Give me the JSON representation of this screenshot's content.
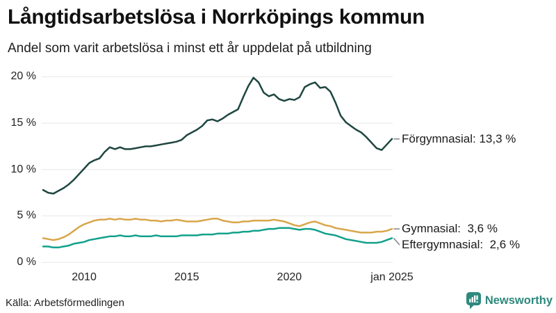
{
  "chart_data": {
    "type": "line",
    "title": "Långtidsarbetslösa i Norrköpings kommun",
    "subtitle": "Andel som varit arbetslösa i minst ett år uppdelat på utbildning",
    "source": "Källa: Arbetsförmedlingen",
    "unit": "%",
    "xlabel": "",
    "ylabel": "",
    "xlim": [
      2008,
      2025
    ],
    "ylim": [
      0,
      20
    ],
    "grid": "horizontal",
    "grid_color": "#e7e7e7",
    "legend_position": "right-end-annotations",
    "xticks": [
      {
        "value": 2010,
        "label": "2010"
      },
      {
        "value": 2015,
        "label": "2015"
      },
      {
        "value": 2020,
        "label": "2020"
      },
      {
        "value": 2025,
        "label": "jan 2025"
      }
    ],
    "yticks": [
      {
        "value": 20,
        "label": "20 %"
      },
      {
        "value": 15,
        "label": "15 %"
      },
      {
        "value": 10,
        "label": "10 %"
      },
      {
        "value": 5,
        "label": "5 %"
      },
      {
        "value": 0,
        "label": "0 %"
      }
    ],
    "x": [
      2008.0,
      2008.25,
      2008.5,
      2008.75,
      2009.0,
      2009.25,
      2009.5,
      2009.75,
      2010.0,
      2010.25,
      2010.5,
      2010.75,
      2011.0,
      2011.25,
      2011.5,
      2011.75,
      2012.0,
      2012.25,
      2012.5,
      2012.75,
      2013.0,
      2013.25,
      2013.5,
      2013.75,
      2014.0,
      2014.25,
      2014.5,
      2014.75,
      2015.0,
      2015.25,
      2015.5,
      2015.75,
      2016.0,
      2016.25,
      2016.5,
      2016.75,
      2017.0,
      2017.25,
      2017.5,
      2017.75,
      2018.0,
      2018.25,
      2018.5,
      2018.75,
      2019.0,
      2019.25,
      2019.5,
      2019.75,
      2020.0,
      2020.25,
      2020.5,
      2020.75,
      2021.0,
      2021.25,
      2021.5,
      2021.75,
      2022.0,
      2022.25,
      2022.5,
      2022.75,
      2023.0,
      2023.25,
      2023.5,
      2023.75,
      2024.0,
      2024.25,
      2024.5,
      2024.75,
      2025.0
    ],
    "series": [
      {
        "name": "Förgymnasial",
        "annotation": "Förgymnasial: 13,3 %",
        "last_value": 13.3,
        "color": "#1e4640",
        "values": [
          7.8,
          7.5,
          7.4,
          7.7,
          8.0,
          8.4,
          8.9,
          9.5,
          10.1,
          10.7,
          11.0,
          11.2,
          11.9,
          12.4,
          12.2,
          12.4,
          12.2,
          12.2,
          12.3,
          12.4,
          12.5,
          12.5,
          12.6,
          12.7,
          12.8,
          12.9,
          13.0,
          13.2,
          13.7,
          14.0,
          14.3,
          14.7,
          15.3,
          15.4,
          15.2,
          15.5,
          15.9,
          16.2,
          16.5,
          17.8,
          19.0,
          19.9,
          19.4,
          18.3,
          17.9,
          18.1,
          17.6,
          17.4,
          17.6,
          17.5,
          17.8,
          18.9,
          19.2,
          19.4,
          18.8,
          18.9,
          18.4,
          17.2,
          15.8,
          15.1,
          14.7,
          14.3,
          14.0,
          13.5,
          12.9,
          12.3,
          12.1,
          12.7,
          13.3
        ]
      },
      {
        "name": "Gymnasial",
        "annotation": "Gymnasial:  3,6 %",
        "last_value": 3.6,
        "color": "#d8a64a",
        "values": [
          2.6,
          2.5,
          2.4,
          2.5,
          2.7,
          3.0,
          3.4,
          3.8,
          4.1,
          4.3,
          4.5,
          4.6,
          4.6,
          4.7,
          4.6,
          4.7,
          4.6,
          4.6,
          4.7,
          4.6,
          4.6,
          4.5,
          4.5,
          4.4,
          4.5,
          4.5,
          4.6,
          4.5,
          4.4,
          4.4,
          4.4,
          4.5,
          4.6,
          4.7,
          4.7,
          4.5,
          4.4,
          4.3,
          4.3,
          4.4,
          4.4,
          4.5,
          4.5,
          4.5,
          4.5,
          4.6,
          4.5,
          4.4,
          4.2,
          4.0,
          3.9,
          4.1,
          4.3,
          4.4,
          4.2,
          4.0,
          3.9,
          3.7,
          3.6,
          3.5,
          3.4,
          3.3,
          3.2,
          3.2,
          3.2,
          3.3,
          3.3,
          3.4,
          3.6
        ]
      },
      {
        "name": "Eftergymnasial",
        "annotation": "Eftergymnasial:  2,6 %",
        "last_value": 2.6,
        "color": "#12a18b",
        "values": [
          1.7,
          1.7,
          1.6,
          1.6,
          1.7,
          1.8,
          2.0,
          2.1,
          2.2,
          2.4,
          2.5,
          2.6,
          2.7,
          2.8,
          2.8,
          2.9,
          2.8,
          2.8,
          2.9,
          2.8,
          2.8,
          2.8,
          2.9,
          2.8,
          2.8,
          2.8,
          2.8,
          2.9,
          2.9,
          2.9,
          2.9,
          3.0,
          3.0,
          3.0,
          3.1,
          3.1,
          3.1,
          3.2,
          3.2,
          3.3,
          3.3,
          3.4,
          3.4,
          3.5,
          3.6,
          3.6,
          3.7,
          3.7,
          3.7,
          3.6,
          3.5,
          3.6,
          3.6,
          3.5,
          3.3,
          3.1,
          3.0,
          2.9,
          2.7,
          2.5,
          2.4,
          2.3,
          2.2,
          2.1,
          2.1,
          2.1,
          2.2,
          2.4,
          2.6
        ]
      }
    ]
  },
  "branding": {
    "name": "Newsworthy",
    "color": "#2e897d"
  }
}
